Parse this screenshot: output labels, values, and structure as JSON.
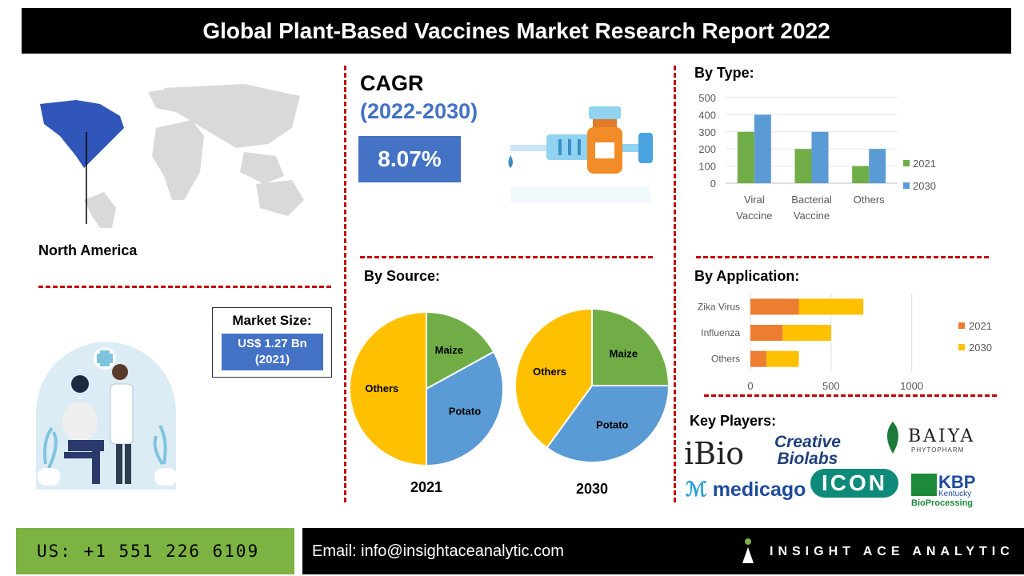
{
  "header": {
    "title": "Global Plant-Based Vaccines Market Research Report 2022"
  },
  "map": {
    "region_label": "North America",
    "highlight_color": "#2f56b8"
  },
  "cagr": {
    "title": "CAGR",
    "years": "(2022-2030)",
    "value": "8.07%"
  },
  "market_size": {
    "title": "Market Size:",
    "value_line1": "US$ 1.27 Bn",
    "value_line2": "(2021)"
  },
  "by_source": {
    "title": "By Source:",
    "chart_data": [
      {
        "type": "pie",
        "title": "2021",
        "labels": [
          "Maize",
          "Potato",
          "Others"
        ],
        "values": [
          17,
          33,
          50
        ],
        "colors": [
          "#70ad47",
          "#5b9bd5",
          "#ffc000"
        ]
      },
      {
        "type": "pie",
        "title": "2030",
        "labels": [
          "Maize",
          "Potato",
          "Others"
        ],
        "values": [
          25,
          35,
          40
        ],
        "colors": [
          "#70ad47",
          "#5b9bd5",
          "#ffc000"
        ]
      }
    ]
  },
  "by_type": {
    "title": "By Type:",
    "chart_data": {
      "type": "bar",
      "categories": [
        "Viral Vaccine",
        "Bacterial Vaccine",
        "Others"
      ],
      "series": [
        {
          "name": "2021",
          "values": [
            300,
            200,
            100
          ],
          "color": "#70ad47"
        },
        {
          "name": "2030",
          "values": [
            400,
            300,
            200
          ],
          "color": "#5b9bd5"
        }
      ],
      "ylim": [
        0,
        500
      ],
      "yticks": [
        "0",
        "100",
        "200",
        "300",
        "400",
        "500"
      ],
      "legend": "right"
    }
  },
  "by_application": {
    "title": "By Application:",
    "chart_data": {
      "type": "bar",
      "orientation": "horizontal",
      "stacked": true,
      "categories": [
        "Zika Virus",
        "Influenza",
        "Others"
      ],
      "series": [
        {
          "name": "2021",
          "values": [
            300,
            200,
            100
          ],
          "color": "#ed7d31"
        },
        {
          "name": "2030",
          "values": [
            400,
            300,
            200
          ],
          "color": "#ffc000"
        }
      ],
      "xlim": [
        0,
        1200
      ],
      "xticks": [
        "0",
        "500",
        "1000"
      ],
      "legend": "right"
    }
  },
  "key_players": {
    "title": "Key Players:",
    "logos": [
      "iBio",
      "Creative Biolabs",
      "BAIYA PHYTOPHARM",
      "medicago",
      "ICON",
      "KBP Kentucky BioProcessing"
    ],
    "creative_line1": "Creative",
    "creative_line2": "Biolabs",
    "baiya_line1": "BAIYA",
    "baiya_line2": "PHYTOPHARM",
    "kbp_line1": "KBP",
    "kbp_line2": "Kentucky",
    "kbp_line3": "BioProcessing"
  },
  "footer": {
    "phone": "US: +1 551 226 6109",
    "email": "Email: info@insightaceanalytic.com",
    "brand": "INSIGHT ACE ANALYTIC"
  }
}
